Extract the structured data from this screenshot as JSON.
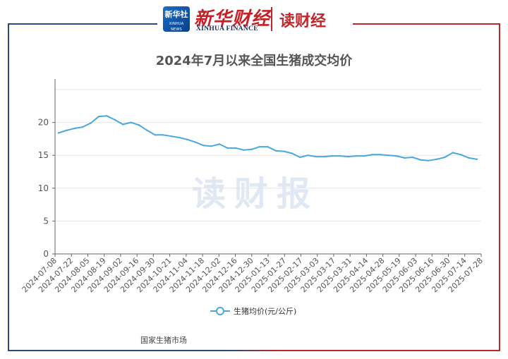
{
  "header": {
    "xinhua_badge_cn": "新华社",
    "xinhua_badge_en": "XINHUA NEWS AGENCY",
    "xinhua_finance_cn": "新华财经",
    "xinhua_finance_en": "XINHUA FINANCE",
    "dc_logo": "读财经"
  },
  "watermark": "读财报",
  "source": "国家生猪市场",
  "colors": {
    "series": "#4aa8dd",
    "axis": "#666666",
    "grid": "#e5e5e5"
  },
  "chart_data": {
    "type": "line",
    "title": "2024年7月以来全国生猪成交均价",
    "xlabel": "",
    "ylabel": "",
    "ylim": [
      0,
      25
    ],
    "yticks": [
      0,
      5,
      10,
      15,
      20
    ],
    "xtick_labels": [
      "2024-07-08",
      "2024-07-22",
      "2024-08-05",
      "2024-08-19",
      "2024-09-02",
      "2024-09-16",
      "2024-09-30",
      "2024-10-21",
      "2024-11-04",
      "2024-11-18",
      "2024-12-02",
      "2024-12-16",
      "2024-12-30",
      "2025-01-13",
      "2025-01-27",
      "2025-02-17",
      "2025-03-03",
      "2025-03-17",
      "2025-03-31",
      "2025-04-14",
      "2025-04-28",
      "2025-05-19",
      "2025-06-03",
      "2025-06-16",
      "2025-06-30",
      "2025-07-14",
      "2025-07-28"
    ],
    "legend_position": "bottom",
    "grid": true,
    "series": [
      {
        "name": "生猪均价(元/公斤)",
        "values": [
          18.4,
          18.8,
          19.1,
          19.3,
          19.9,
          20.9,
          21.0,
          20.4,
          19.7,
          20.0,
          19.6,
          18.8,
          18.1,
          18.1,
          17.9,
          17.7,
          17.4,
          17.0,
          16.5,
          16.4,
          16.7,
          16.1,
          16.1,
          15.8,
          15.9,
          16.3,
          16.3,
          15.7,
          15.6,
          15.3,
          14.7,
          15.0,
          14.8,
          14.8,
          14.9,
          14.9,
          14.8,
          14.9,
          14.9,
          15.1,
          15.1,
          15.0,
          14.9,
          14.6,
          14.7,
          14.3,
          14.2,
          14.4,
          14.7,
          15.4,
          15.1,
          14.6,
          14.4
        ]
      }
    ]
  }
}
